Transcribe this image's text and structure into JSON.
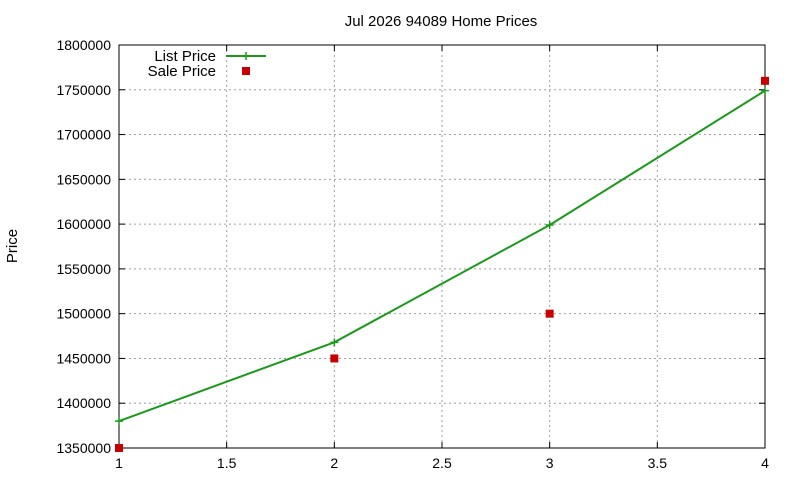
{
  "chart_data": {
    "type": "line",
    "title": "Jul 2026 94089 Home Prices",
    "xlabel": "",
    "ylabel": "Price",
    "x": [
      1,
      2,
      3,
      4
    ],
    "xlim": [
      1,
      4
    ],
    "ylim": [
      1350000,
      1800000
    ],
    "xticks": [
      "1",
      "1.5",
      "2",
      "2.5",
      "3",
      "3.5",
      "4"
    ],
    "yticks": [
      "1350000",
      "1400000",
      "1450000",
      "1500000",
      "1550000",
      "1600000",
      "1650000",
      "1700000",
      "1750000",
      "1800000"
    ],
    "grid": true,
    "legend_position": "top-left",
    "series": [
      {
        "name": "List Price",
        "style": "line-with-plus-markers",
        "color": "#1a9a1a",
        "values": [
          1380000,
          1468000,
          1599000,
          1749000
        ]
      },
      {
        "name": "Sale Price",
        "style": "square-markers",
        "color": "#c80000",
        "values": [
          1350000,
          1450000,
          1500000,
          1760000
        ]
      }
    ]
  }
}
